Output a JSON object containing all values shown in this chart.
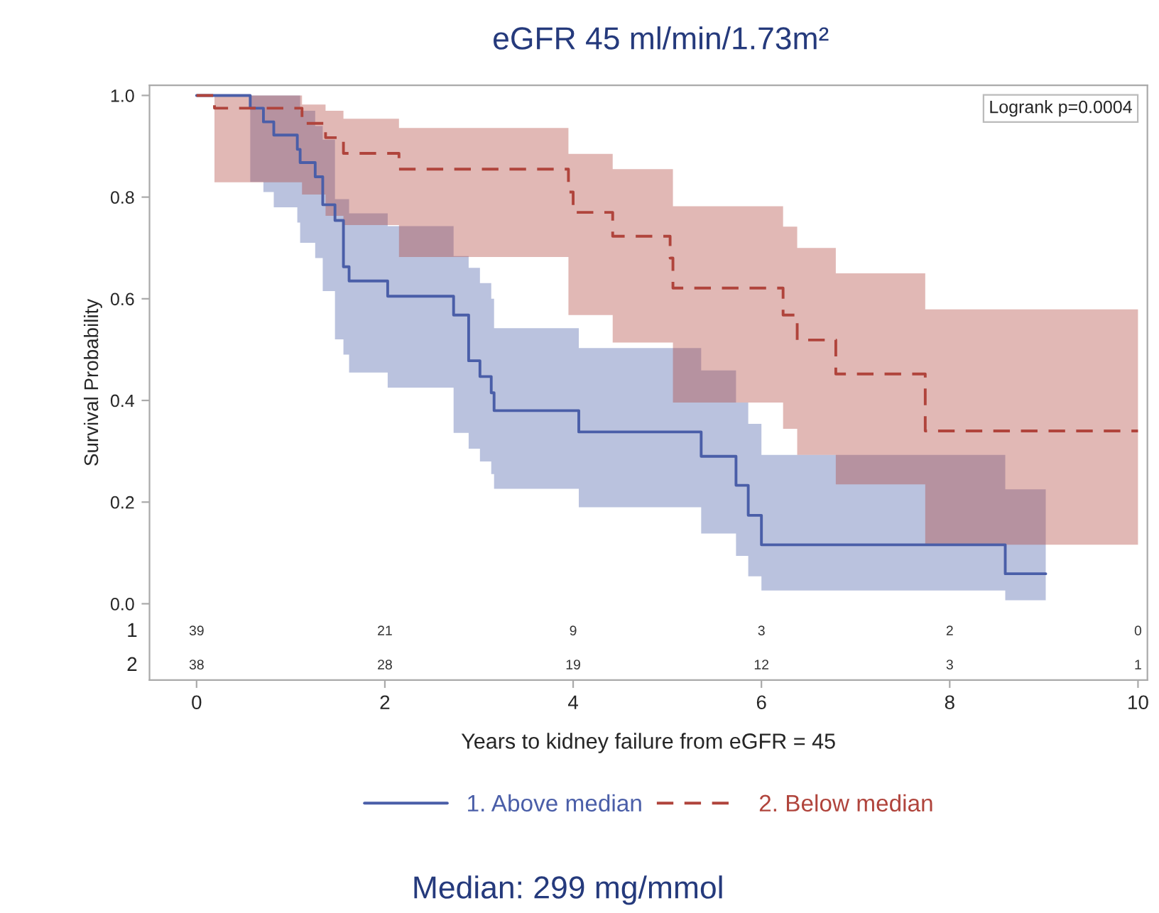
{
  "chart_data": {
    "type": "step",
    "title": "eGFR 45 ml/min/1.73m²",
    "ylabel": "Survival Probability",
    "xlabel": "Years to kidney failure from eGFR = 45",
    "xlim": [
      -0.5,
      10.1
    ],
    "xticks": [
      0,
      2,
      4,
      6,
      8,
      10
    ],
    "ylim": [
      -0.15,
      1.02
    ],
    "yticks": [
      {
        "value": 0,
        "label": "0.0"
      },
      0.2,
      0.4,
      0.6,
      0.8,
      {
        "value": 1,
        "label": "1.0"
      }
    ],
    "grid": false,
    "legend": "bottom",
    "annotations": [
      "Logrank p=0.0004",
      "Median: 299 mg/mmol",
      "1",
      "39",
      "21",
      "9",
      "3",
      "2",
      "0",
      "2",
      "38",
      "28",
      "19",
      "12",
      "3",
      "1"
    ],
    "series": [
      {
        "name": "1. Above median",
        "color": "#4a5ea8",
        "line_style": "solid",
        "x": [
          0,
          0.57,
          0.71,
          0.82,
          1.07,
          1.1,
          1.26,
          1.34,
          1.47,
          1.56,
          1.62,
          2.03,
          2.73,
          2.89,
          3.01,
          3.13,
          3.16,
          4.06,
          5.36,
          5.73,
          5.86,
          6.0,
          8.59,
          9.02
        ],
        "values": [
          1.0,
          0.975,
          0.948,
          0.922,
          0.894,
          0.868,
          0.84,
          0.785,
          0.754,
          0.663,
          0.635,
          0.605,
          0.568,
          0.478,
          0.447,
          0.415,
          0.38,
          0.338,
          0.29,
          0.233,
          0.174,
          0.116,
          0.059,
          0.059
        ],
        "lower": [
          1.0,
          0.83,
          0.81,
          0.78,
          0.75,
          0.71,
          0.68,
          0.615,
          0.52,
          0.49,
          0.455,
          0.425,
          0.336,
          0.305,
          0.28,
          0.255,
          0.226,
          0.19,
          0.138,
          0.094,
          0.054,
          0.026,
          0.007,
          0.007
        ],
        "upper": [
          1.0,
          1.0,
          1.0,
          1.0,
          1.0,
          0.97,
          0.94,
          0.913,
          0.796,
          0.796,
          0.768,
          0.743,
          0.684,
          0.661,
          0.631,
          0.6,
          0.542,
          0.503,
          0.459,
          0.396,
          0.354,
          0.293,
          0.225,
          0.225
        ]
      },
      {
        "name": "2. Below median",
        "color": "#b0443c",
        "line_style": "dashed",
        "x": [
          0,
          0.19,
          1.12,
          1.37,
          1.56,
          2.15,
          3.95,
          4.0,
          4.42,
          5.03,
          5.06,
          6.23,
          6.38,
          6.79,
          7.74,
          10
        ],
        "values": [
          1.0,
          0.975,
          0.945,
          0.917,
          0.886,
          0.855,
          0.81,
          0.77,
          0.723,
          0.68,
          0.621,
          0.568,
          0.519,
          0.452,
          0.34,
          0.34
        ],
        "lower": [
          1.0,
          0.829,
          0.805,
          0.763,
          0.745,
          0.682,
          0.568,
          0.568,
          0.514,
          0.514,
          0.396,
          0.344,
          0.293,
          0.235,
          0.116,
          0.116
        ],
        "upper": [
          1.0,
          1.0,
          0.982,
          0.97,
          0.954,
          0.936,
          0.885,
          0.885,
          0.855,
          0.855,
          0.782,
          0.742,
          0.7,
          0.65,
          0.579,
          0.579
        ]
      }
    ]
  }
}
